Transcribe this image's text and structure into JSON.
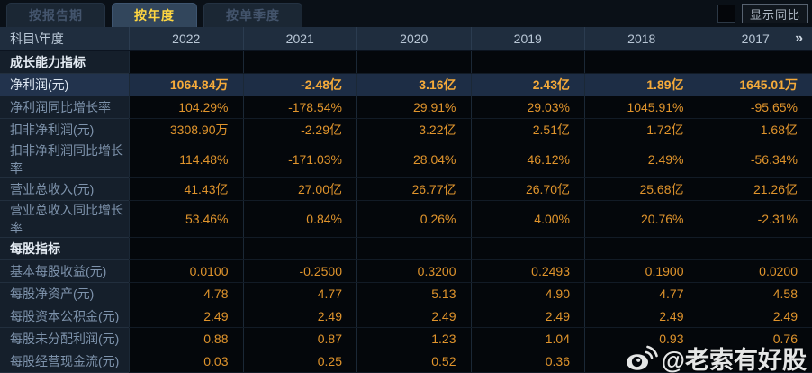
{
  "tabs": {
    "items": [
      {
        "label": "按报告期",
        "active": false
      },
      {
        "label": "按年度",
        "active": true
      },
      {
        "label": "按单季度",
        "active": false
      }
    ]
  },
  "controls": {
    "show_yoy_label": "显示同比"
  },
  "table": {
    "corner_label": "科目\\年度",
    "years": [
      "2022",
      "2021",
      "2020",
      "2019",
      "2018",
      "2017"
    ],
    "more_symbol": "»",
    "rows": [
      {
        "type": "section",
        "label": "成长能力指标",
        "values": [
          "",
          "",
          "",
          "",
          "",
          ""
        ]
      },
      {
        "type": "data",
        "highlight": true,
        "label": "净利润(元)",
        "values": [
          "1064.84万",
          "-2.48亿",
          "3.16亿",
          "2.43亿",
          "1.89亿",
          "1645.01万"
        ]
      },
      {
        "type": "data",
        "highlight": false,
        "label": "净利润同比增长率",
        "values": [
          "104.29%",
          "-178.54%",
          "29.91%",
          "29.03%",
          "1045.91%",
          "-95.65%"
        ]
      },
      {
        "type": "data",
        "highlight": false,
        "label": "扣非净利润(元)",
        "values": [
          "3308.90万",
          "-2.29亿",
          "3.22亿",
          "2.51亿",
          "1.72亿",
          "1.68亿"
        ]
      },
      {
        "type": "data",
        "highlight": false,
        "label": "扣非净利润同比增长率",
        "values": [
          "114.48%",
          "-171.03%",
          "28.04%",
          "46.12%",
          "2.49%",
          "-56.34%"
        ]
      },
      {
        "type": "data",
        "highlight": false,
        "label": "营业总收入(元)",
        "values": [
          "41.43亿",
          "27.00亿",
          "26.77亿",
          "26.70亿",
          "25.68亿",
          "21.26亿"
        ]
      },
      {
        "type": "data",
        "highlight": false,
        "label": "营业总收入同比增长率",
        "values": [
          "53.46%",
          "0.84%",
          "0.26%",
          "4.00%",
          "20.76%",
          "-2.31%"
        ]
      },
      {
        "type": "section",
        "label": "每股指标",
        "values": [
          "",
          "",
          "",
          "",
          "",
          ""
        ]
      },
      {
        "type": "data",
        "highlight": false,
        "label": "基本每股收益(元)",
        "values": [
          "0.0100",
          "-0.2500",
          "0.3200",
          "0.2493",
          "0.1900",
          "0.0200"
        ]
      },
      {
        "type": "data",
        "highlight": false,
        "label": "每股净资产(元)",
        "values": [
          "4.78",
          "4.77",
          "5.13",
          "4.90",
          "4.77",
          "4.58"
        ]
      },
      {
        "type": "data",
        "highlight": false,
        "label": "每股资本公积金(元)",
        "values": [
          "2.49",
          "2.49",
          "2.49",
          "2.49",
          "2.49",
          "2.49"
        ]
      },
      {
        "type": "data",
        "highlight": false,
        "label": "每股未分配利润(元)",
        "values": [
          "0.88",
          "0.87",
          "1.23",
          "1.04",
          "0.93",
          "0.76"
        ]
      },
      {
        "type": "data",
        "highlight": false,
        "label": "每股经营现金流(元)",
        "values": [
          "0.03",
          "0.25",
          "0.52",
          "0.36",
          "",
          ""
        ]
      }
    ]
  },
  "watermark": {
    "text": "@老索有好股",
    "icon": "weibo-icon"
  },
  "colors": {
    "accent_gold": "#ffd742",
    "value_orange": "#e0942c",
    "highlight_row_bg": "#1d2d45",
    "header_bg": "#1f2d3e",
    "label_col_bg": "#151f2b"
  }
}
